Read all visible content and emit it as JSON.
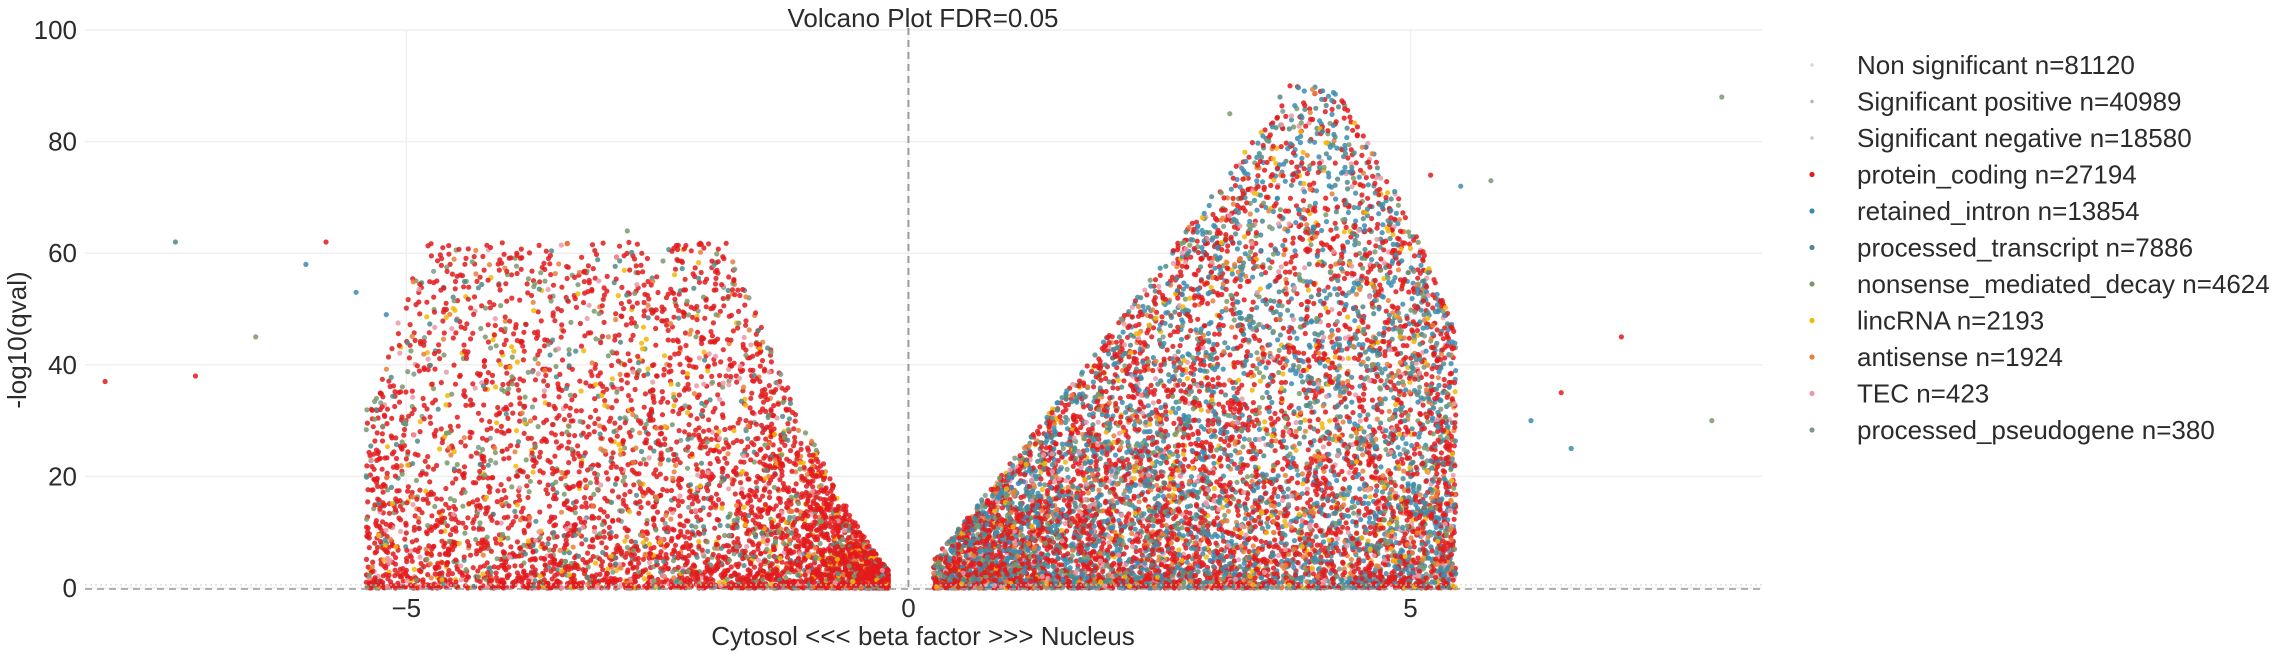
{
  "chart_data": {
    "type": "scatter",
    "title": "Volcano Plot  FDR=0.05",
    "xlabel": "Cytosol <<< beta factor >>> Nucleus",
    "ylabel": "-log10(qval)",
    "xlim": [
      -8.2,
      8.5
    ],
    "ylim": [
      0,
      100
    ],
    "x_ticks": [
      -5,
      0,
      5
    ],
    "y_ticks": [
      0,
      20,
      40,
      60,
      80,
      100
    ],
    "x_tick_labels": [
      "−5",
      "0",
      "5"
    ],
    "y_tick_labels": [
      "0",
      "20",
      "40",
      "60",
      "80",
      "100"
    ],
    "grid": true,
    "threshold_lines": {
      "vertical_x": 0,
      "horizontal_y": 0
    },
    "legend_position": "right",
    "series": [
      {
        "name": "Non significant  n=81120",
        "color": "#d9d9d9"
      },
      {
        "name": "Significant positive n=40989",
        "color": "#b5b5b5"
      },
      {
        "name": "Significant negative n=18580",
        "color": "#c7c7c7"
      },
      {
        "name": "protein_coding  n=27194",
        "color": "#e31a1c"
      },
      {
        "name": "retained_intron  n=13854",
        "color": "#3a8cb0"
      },
      {
        "name": "processed_transcript  n=7886",
        "color": "#4f8a8b"
      },
      {
        "name": "nonsense_mediated_decay  n=4624",
        "color": "#7a9a6a"
      },
      {
        "name": "lincRNA  n=2193",
        "color": "#f2b705"
      },
      {
        "name": "antisense  n=1924",
        "color": "#e8803a"
      },
      {
        "name": "TEC  n=423",
        "color": "#e89aa8"
      },
      {
        "name": "processed_pseudogene  n=380",
        "color": "#7a9a8e"
      }
    ]
  }
}
